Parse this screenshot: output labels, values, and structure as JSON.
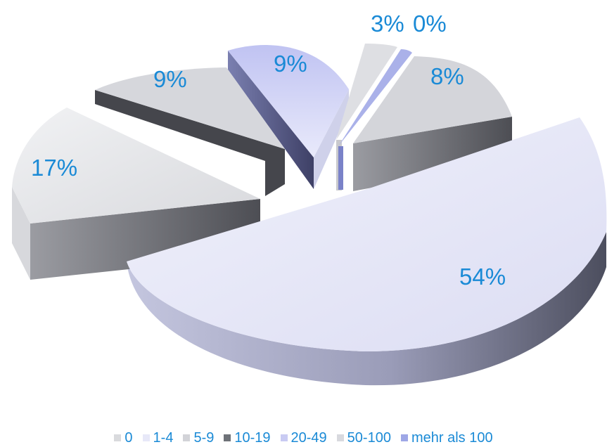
{
  "chart_data": {
    "type": "pie",
    "categories": [
      "0",
      "1-4",
      "5-9",
      "10-19",
      "20-49",
      "50-100",
      "mehr als 100"
    ],
    "values": [
      17,
      54,
      8,
      0,
      3,
      9,
      9
    ],
    "data_labels": [
      "17%",
      "54%",
      "8%",
      "0%",
      "3%",
      "9%",
      "9%"
    ],
    "colors": [
      "#d9dadd",
      "#e7e8f8",
      "#d2d3d8",
      "#6e7278",
      "#c9cbf3",
      "#d8d9de",
      "#9ea7e6"
    ],
    "legend": {
      "position": "bottom",
      "entries": [
        "0",
        "1-4",
        "5-9",
        "10-19",
        "20-49",
        "50-100",
        "mehr als 100"
      ]
    },
    "label_color": "#1a8ad6",
    "style": "3d-exploded"
  }
}
